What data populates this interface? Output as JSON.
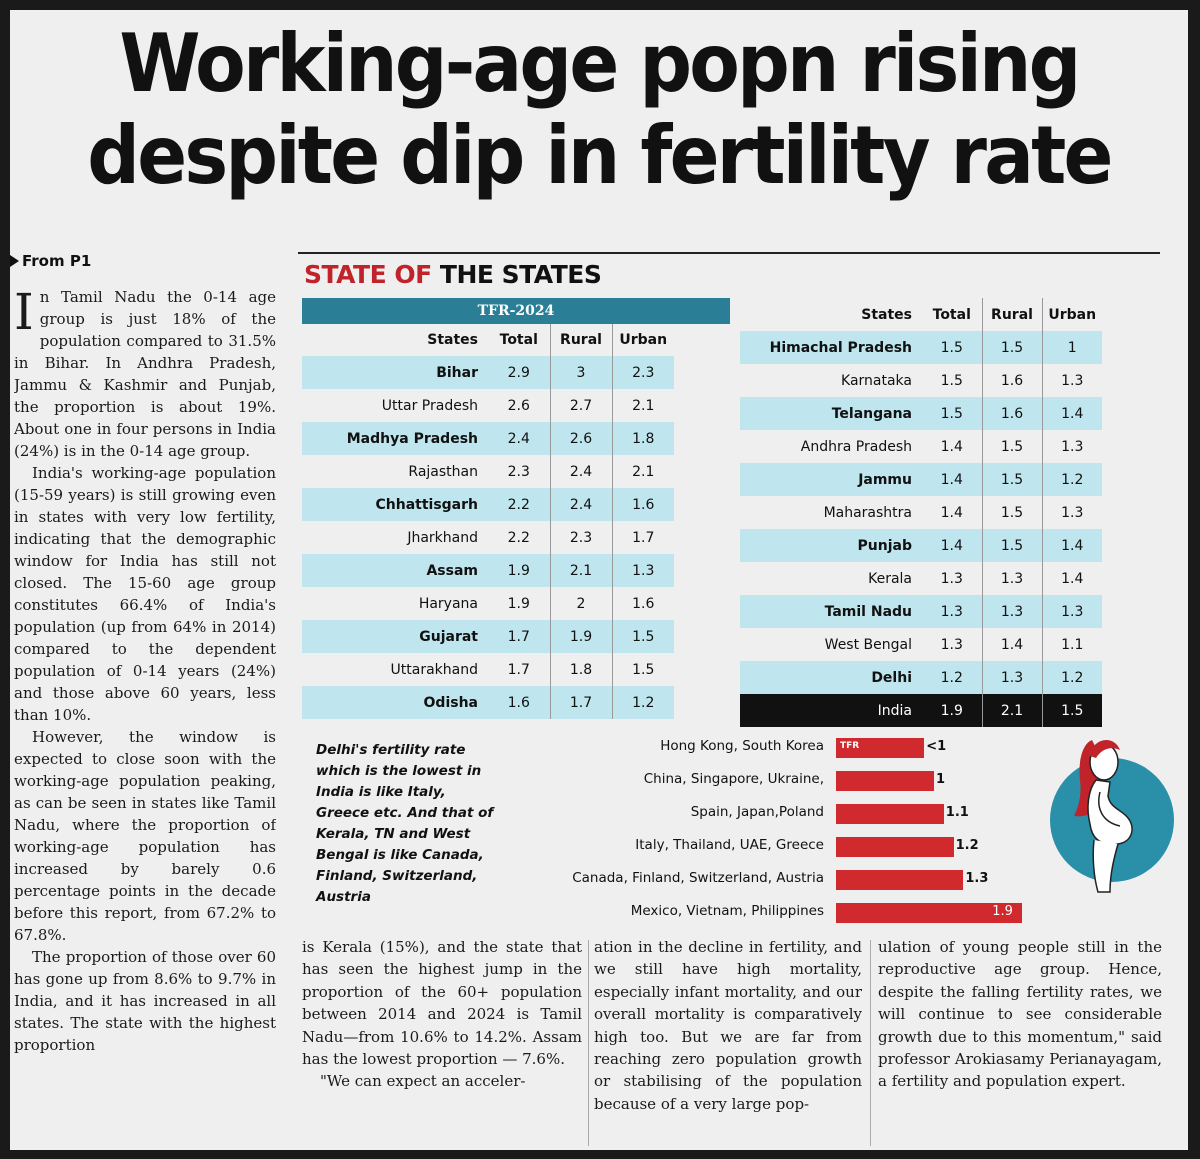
{
  "headline": {
    "line1": "Working-age popn rising",
    "line2": "despite dip in fertility rate"
  },
  "kicker": "From P1",
  "section_title": {
    "red": "STATE OF",
    "dark": "THE STATES"
  },
  "left_column": {
    "drop_cap": "I",
    "paragraphs": [
      "n Tamil Nadu the 0-14 age group is just 18% of the population compared to 31.5% in Bihar. In Andhra Pradesh, Jammu & Kashmir and Punjab, the proportion is about 19%. About one in four persons in India (24%) is in the 0-14 age group.",
      "India's working-age population (15-59 years) is still growing even in states with very low fertility, indicating that the demographic window for India has still not closed. The 15-60 age group constitutes 66.4% of India's population (up from 64% in 2014) compared to the dependent population of 0-14 years (24%) and those above 60 years, less than 10%.",
      "However, the window is expected to close soon with the working-age population peaking, as can be seen in states like Tamil Nadu, where the proportion of working-age population has increased by barely 0.6 percentage points in the decade before this report, from 67.2% to 67.8%.",
      "The proportion of those over 60 has gone up from 8.6% to 9.7% in India, and it has increased in all states. The state with the highest proportion"
    ]
  },
  "tfr_label": "TFR-2024",
  "table_headers": {
    "state": "States",
    "total": "Total",
    "rural": "Rural",
    "urban": "Urban"
  },
  "table_left": [
    {
      "state": "Bihar",
      "total": "2.9",
      "rural": "3",
      "urban": "2.3",
      "shade": true
    },
    {
      "state": "Uttar Pradesh",
      "total": "2.6",
      "rural": "2.7",
      "urban": "2.1",
      "shade": false
    },
    {
      "state": "Madhya Pradesh",
      "total": "2.4",
      "rural": "2.6",
      "urban": "1.8",
      "shade": true
    },
    {
      "state": "Rajasthan",
      "total": "2.3",
      "rural": "2.4",
      "urban": "2.1",
      "shade": false
    },
    {
      "state": "Chhattisgarh",
      "total": "2.2",
      "rural": "2.4",
      "urban": "1.6",
      "shade": true
    },
    {
      "state": "Jharkhand",
      "total": "2.2",
      "rural": "2.3",
      "urban": "1.7",
      "shade": false
    },
    {
      "state": "Assam",
      "total": "1.9",
      "rural": "2.1",
      "urban": "1.3",
      "shade": true
    },
    {
      "state": "Haryana",
      "total": "1.9",
      "rural": "2",
      "urban": "1.6",
      "shade": false
    },
    {
      "state": "Gujarat",
      "total": "1.7",
      "rural": "1.9",
      "urban": "1.5",
      "shade": true
    },
    {
      "state": "Uttarakhand",
      "total": "1.7",
      "rural": "1.8",
      "urban": "1.5",
      "shade": false
    },
    {
      "state": "Odisha",
      "total": "1.6",
      "rural": "1.7",
      "urban": "1.2",
      "shade": true
    }
  ],
  "table_right": [
    {
      "state": "Himachal Pradesh",
      "total": "1.5",
      "rural": "1.5",
      "urban": "1",
      "shade": true
    },
    {
      "state": "Karnataka",
      "total": "1.5",
      "rural": "1.6",
      "urban": "1.3",
      "shade": false
    },
    {
      "state": "Telangana",
      "total": "1.5",
      "rural": "1.6",
      "urban": "1.4",
      "shade": true
    },
    {
      "state": "Andhra Pradesh",
      "total": "1.4",
      "rural": "1.5",
      "urban": "1.3",
      "shade": false
    },
    {
      "state": "Jammu",
      "total": "1.4",
      "rural": "1.5",
      "urban": "1.2",
      "shade": true
    },
    {
      "state": "Maharashtra",
      "total": "1.4",
      "rural": "1.5",
      "urban": "1.3",
      "shade": false
    },
    {
      "state": "Punjab",
      "total": "1.4",
      "rural": "1.5",
      "urban": "1.4",
      "shade": true
    },
    {
      "state": "Kerala",
      "total": "1.3",
      "rural": "1.3",
      "urban": "1.4",
      "shade": false
    },
    {
      "state": "Tamil Nadu",
      "total": "1.3",
      "rural": "1.3",
      "urban": "1.3",
      "shade": true
    },
    {
      "state": "West Bengal",
      "total": "1.3",
      "rural": "1.4",
      "urban": "1.1",
      "shade": false
    },
    {
      "state": "Delhi",
      "total": "1.2",
      "rural": "1.3",
      "urban": "1.2",
      "shade": true
    }
  ],
  "india_row": {
    "state": "India",
    "total": "1.9",
    "rural": "2.1",
    "urban": "1.5"
  },
  "compare_note": "Delhi's fertility rate which is the lowest in India is like Italy, Greece etc. And that of Kerala, TN and West Bengal is like Canada, Finland, Switzerland, Austria",
  "comparison_tag": "TFR",
  "chart_data": {
    "type": "bar",
    "orientation": "horizontal",
    "categories": [
      "Hong Kong, South Korea",
      "China, Singapore, Ukraine,",
      "Spain, Japan,Poland",
      "Italy, Thailand, UAE, Greece",
      "Canada, Finland, Switzerland, Austria",
      "Mexico, Vietnam, Philippines"
    ],
    "value_labels": [
      "<1",
      "1",
      "1.1",
      "1.2",
      "1.3",
      "1.9"
    ],
    "values": [
      0.9,
      1,
      1.1,
      1.2,
      1.3,
      1.9
    ],
    "title": "",
    "xlabel": "",
    "ylabel": "",
    "bar_color": "#d02a2f"
  },
  "column_2": [
    "is Kerala (15%), and the state that has seen the highest jump in the proportion of the 60+ population between 2014 and 2024 is Tamil Nadu—from 10.6% to 14.2%. Assam has the lowest proportion — 7.6%.",
    "\"We can expect an acceler-"
  ],
  "column_3": [
    "ation in the decline in fertility, and we still have high mortality, especially infant mortality, and our overall mortality is comparatively high too. But we are far from reaching zero population growth or stabilising of the population because of a very large pop-"
  ],
  "column_4": [
    "ulation of young people still in the reproductive age group. Hence, despite the falling fertility rates, we will continue to see considerable growth due to this momentum,\" said professor Arokiasamy Perianayagam, a fertility and population expert."
  ],
  "colors": {
    "accent_red": "#c0232a",
    "teal_header": "#2a7f96",
    "row_shade": "#bfe6ee",
    "bar_red": "#d02a2f",
    "circle_teal": "#2a8fa8"
  }
}
